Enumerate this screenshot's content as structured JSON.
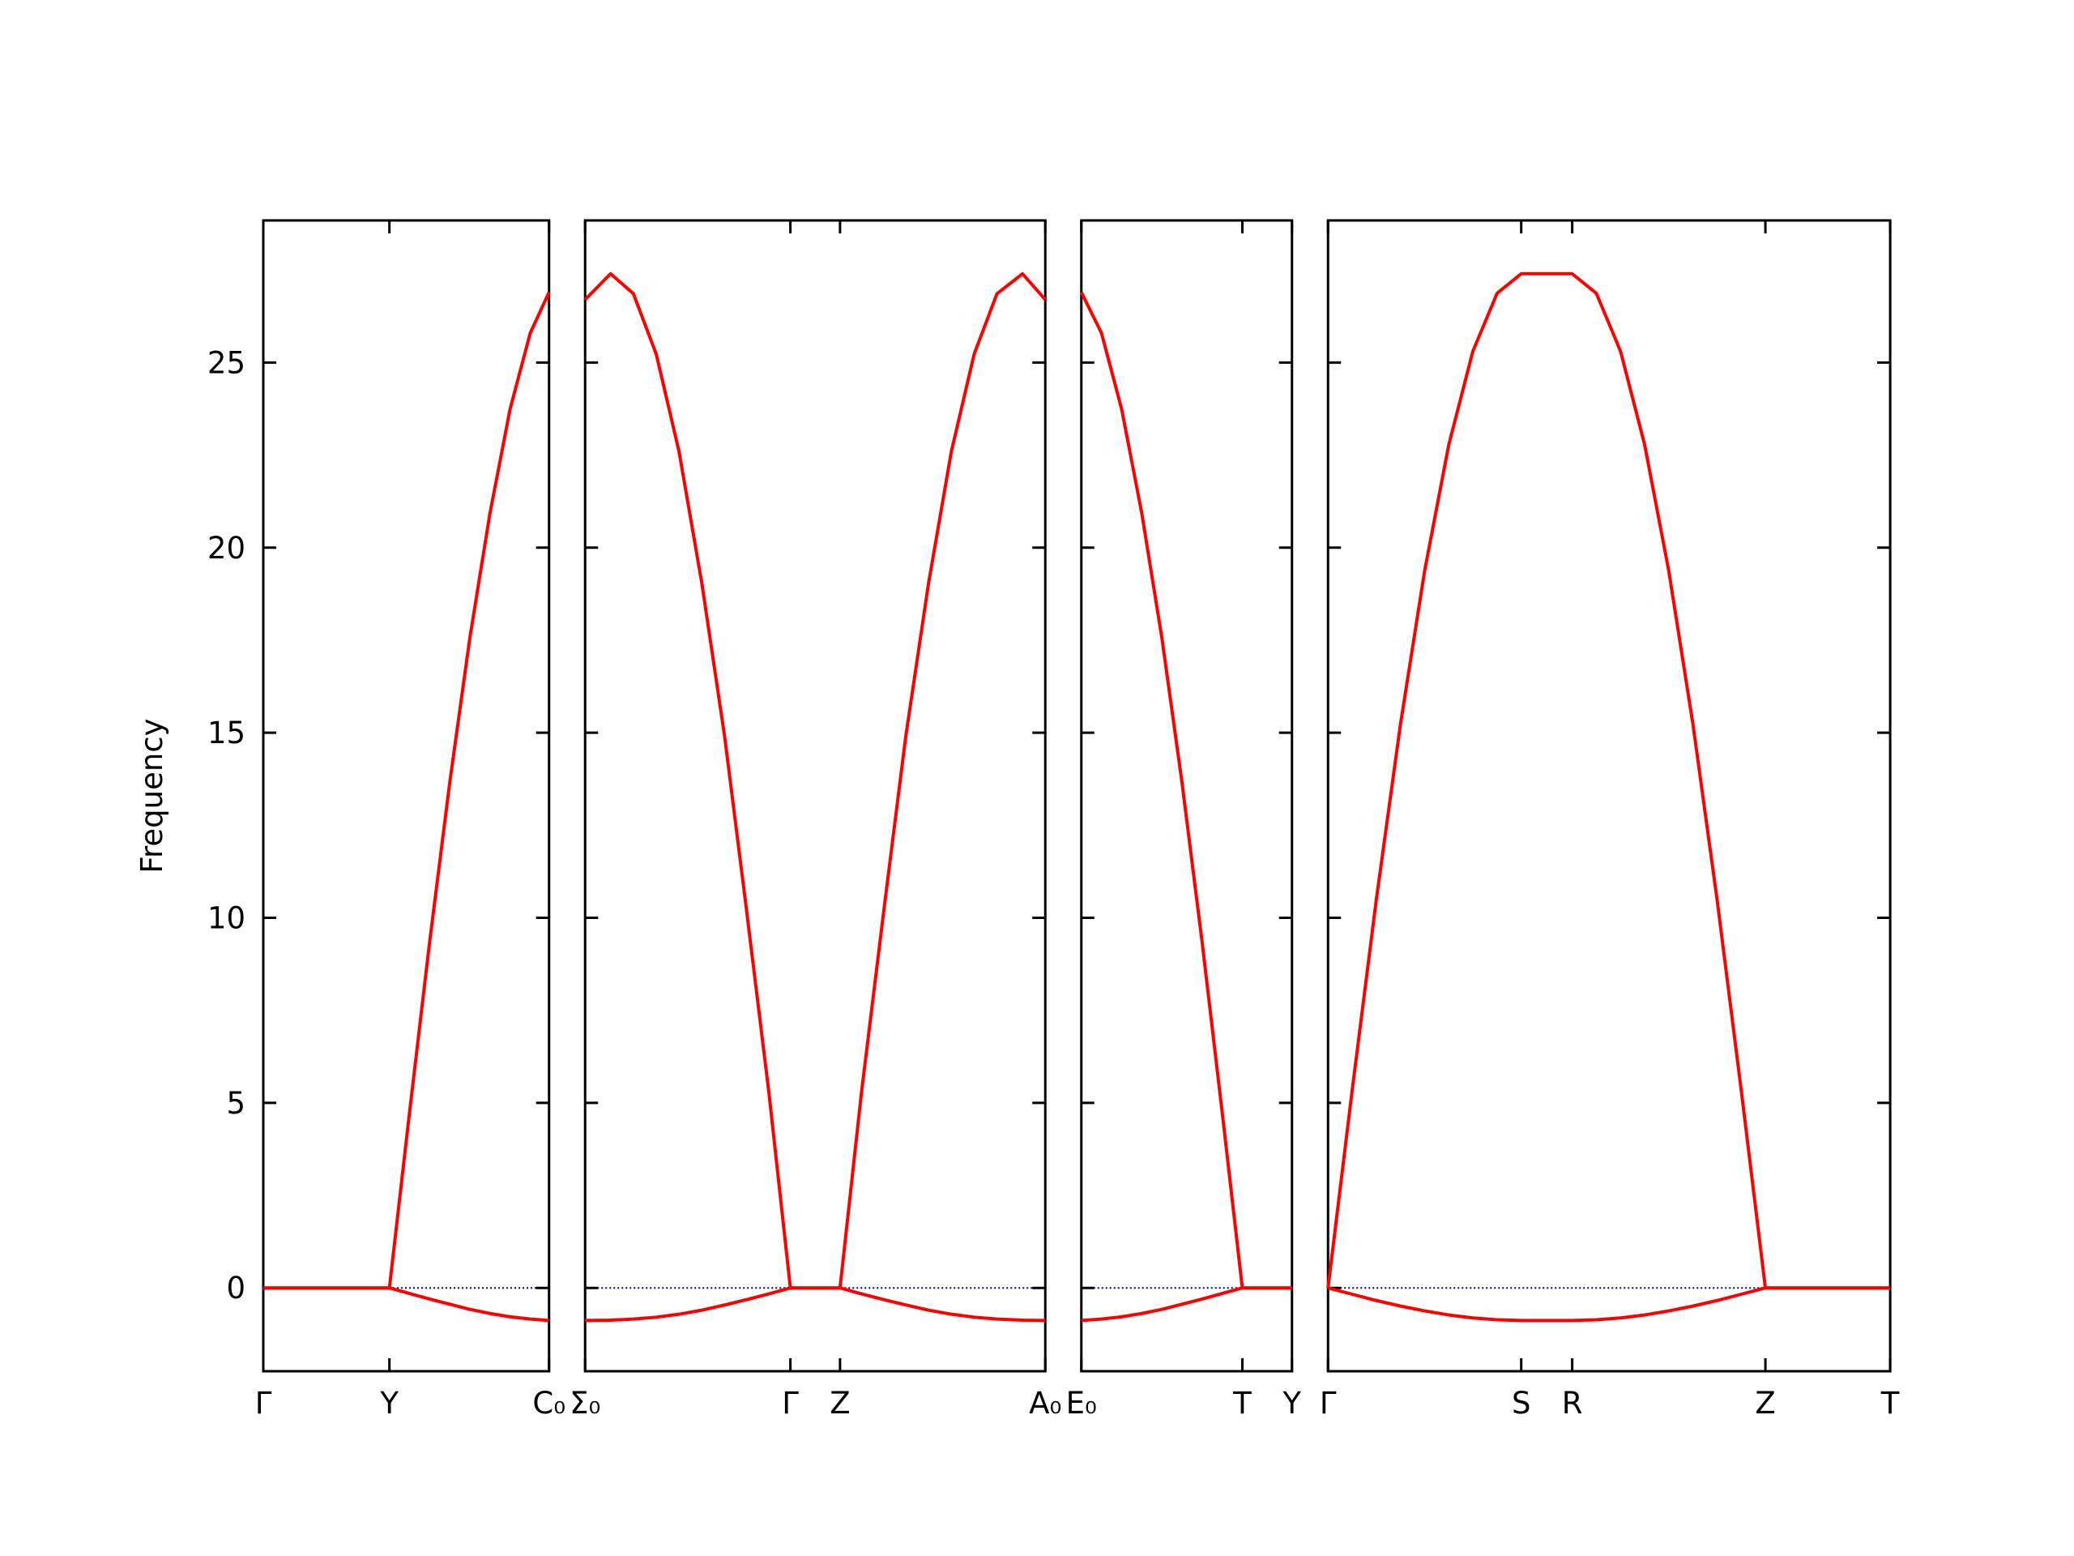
{
  "chart_data": [
    {
      "type": "line",
      "ylabel": "Frequency",
      "xlim": [
        0,
        2.13
      ],
      "xticks": [
        {
          "value": 0,
          "label": "Γ"
        },
        {
          "value": 0.94,
          "label": "Y"
        },
        {
          "value": 2.13,
          "label": "C₀"
        }
      ],
      "ylim": [
        -2.25,
        28.84
      ],
      "yticks": [
        0,
        5,
        10,
        15,
        20,
        25
      ],
      "hline": 0,
      "hline_color": "#00008b",
      "x": [
        0,
        0.94,
        1.09,
        1.24,
        1.39,
        1.54,
        1.69,
        1.84,
        1.99,
        2.13
      ],
      "series": [
        {
          "color": "#ff0000",
          "values": [
            0,
            0,
            -0.15,
            -0.3,
            -0.44,
            -0.58,
            -0.69,
            -0.78,
            -0.84,
            -0.88
          ]
        },
        {
          "color": "#ff0000",
          "values": [
            0,
            0,
            4.74,
            9.35,
            13.66,
            17.57,
            20.94,
            23.75,
            25.8,
            26.9
          ]
        }
      ]
    },
    {
      "type": "line",
      "xlim": [
        2.13,
        5.56
      ],
      "xticks": [
        {
          "value": 2.13,
          "label": "Σ₀"
        },
        {
          "value": 3.66,
          "label": "Γ"
        },
        {
          "value": 4.03,
          "label": "Z"
        },
        {
          "value": 5.56,
          "label": "A₀"
        }
      ],
      "ylim": [
        -2.25,
        28.84
      ],
      "yticks": [
        0,
        5,
        10,
        15,
        20,
        25
      ],
      "yticklabels": false,
      "hline": 0,
      "hline_color": "#00008b",
      "x": [
        2.13,
        2.32,
        2.49,
        2.66,
        2.83,
        3.0,
        3.17,
        3.33,
        3.5,
        3.66,
        4.03,
        4.19,
        4.36,
        4.52,
        4.69,
        4.86,
        5.03,
        5.2,
        5.39,
        5.56
      ],
      "series": [
        {
          "color": "#ff0000",
          "values": [
            -0.88,
            -0.87,
            -0.84,
            -0.79,
            -0.71,
            -0.6,
            -0.46,
            -0.32,
            -0.16,
            0,
            0,
            -0.16,
            -0.32,
            -0.46,
            -0.6,
            -0.71,
            -0.79,
            -0.84,
            -0.87,
            -0.88
          ]
        },
        {
          "color": "#ff0000",
          "values": [
            26.7,
            27.4,
            26.86,
            25.23,
            22.6,
            19.04,
            14.9,
            10.3,
            5.28,
            0,
            0,
            5.28,
            10.3,
            14.9,
            19.04,
            22.6,
            25.23,
            26.86,
            27.4,
            26.7
          ]
        }
      ]
    },
    {
      "type": "line",
      "xlim": [
        5.56,
        7.13
      ],
      "xticks": [
        {
          "value": 5.56,
          "label": "E₀"
        },
        {
          "value": 6.76,
          "label": "T"
        },
        {
          "value": 7.13,
          "label": "Y"
        }
      ],
      "ylim": [
        -2.25,
        28.84
      ],
      "yticks": [
        0,
        5,
        10,
        15,
        20,
        25
      ],
      "yticklabels": false,
      "hline": 0,
      "hline_color": "#00008b",
      "x": [
        5.56,
        5.71,
        5.86,
        6.01,
        6.16,
        6.31,
        6.46,
        6.61,
        6.76,
        7.13
      ],
      "series": [
        {
          "color": "#ff0000",
          "values": [
            -0.88,
            -0.84,
            -0.78,
            -0.69,
            -0.58,
            -0.44,
            -0.3,
            -0.15,
            0,
            0
          ]
        },
        {
          "color": "#ff0000",
          "values": [
            26.9,
            25.8,
            23.75,
            20.94,
            17.57,
            13.66,
            9.35,
            4.74,
            0,
            0
          ]
        }
      ]
    },
    {
      "type": "line",
      "xlim": [
        7.13,
        11.32
      ],
      "xticks": [
        {
          "value": 7.13,
          "label": "Γ"
        },
        {
          "value": 8.57,
          "label": "S"
        },
        {
          "value": 8.95,
          "label": "R"
        },
        {
          "value": 10.39,
          "label": "Z"
        },
        {
          "value": 11.32,
          "label": "T"
        }
      ],
      "ylim": [
        -2.25,
        28.84
      ],
      "yticks": [
        0,
        5,
        10,
        15,
        20,
        25
      ],
      "yticklabels": false,
      "hline": 0,
      "hline_color": "#00008b",
      "x": [
        7.13,
        7.31,
        7.49,
        7.67,
        7.85,
        8.03,
        8.21,
        8.39,
        8.57,
        8.95,
        9.13,
        9.31,
        9.49,
        9.67,
        9.85,
        10.03,
        10.21,
        10.39,
        11.32
      ],
      "series": [
        {
          "color": "#ff0000",
          "values": [
            0,
            -0.17,
            -0.34,
            -0.49,
            -0.62,
            -0.73,
            -0.81,
            -0.86,
            -0.88,
            -0.88,
            -0.86,
            -0.81,
            -0.73,
            -0.62,
            -0.49,
            -0.34,
            -0.17,
            0,
            0
          ]
        },
        {
          "color": "#ff0000",
          "values": [
            0,
            5.34,
            10.49,
            15.23,
            19.37,
            22.78,
            25.31,
            26.87,
            27.4,
            27.4,
            26.87,
            25.31,
            22.78,
            19.37,
            15.23,
            10.49,
            5.34,
            0,
            0
          ]
        }
      ]
    }
  ]
}
